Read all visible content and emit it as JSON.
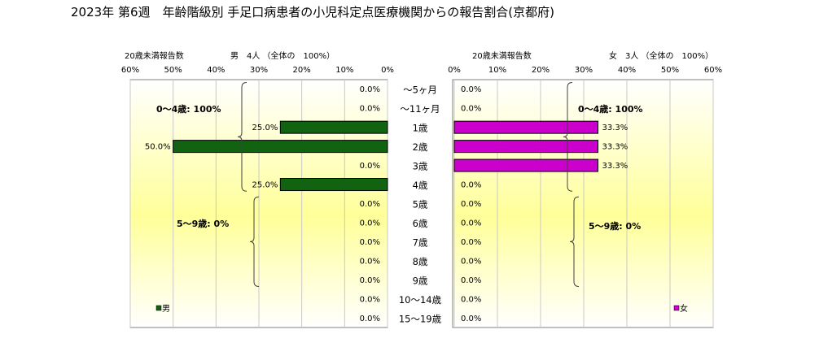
{
  "title": "2023年 第6週　年齢階級別 手足口病患者の小児科定点医療機関からの報告割合(京都府)",
  "chart_data": [
    {
      "type": "bar",
      "orientation": "horizontal",
      "direction": "right-to-left",
      "subtitle_left": "20歳未満報告数",
      "subtitle_right": "男　4人 （全体の　100%）",
      "series": [
        {
          "name": "男",
          "color": "#116311",
          "values": [
            0.0,
            0.0,
            25.0,
            50.0,
            0.0,
            25.0,
            0.0,
            0.0,
            0.0,
            0.0,
            0.0,
            0.0,
            0.0
          ]
        }
      ],
      "value_labels": [
        "0.0%",
        "0.0%",
        "25.0%",
        "50.0%",
        "0.0%",
        "25.0%",
        "0.0%",
        "0.0%",
        "0.0%",
        "0.0%",
        "0.0%",
        "0.0%",
        "0.0%"
      ],
      "ticks": [
        "60%",
        "50%",
        "40%",
        "30%",
        "20%",
        "10%",
        "0%"
      ],
      "xlim": [
        0,
        60
      ],
      "grid": true,
      "legend": "bottom-left",
      "legend_label": "男",
      "brackets": [
        {
          "label": "0～4歳: 100%",
          "from": 0,
          "to": 5
        },
        {
          "label": "5～9歳: 0%",
          "from": 6,
          "to": 10
        }
      ]
    },
    {
      "type": "bar",
      "orientation": "horizontal",
      "direction": "left-to-right",
      "subtitle_left": "20歳未満報告数",
      "subtitle_right": "女　3人 （全体の　100%）",
      "series": [
        {
          "name": "女",
          "color": "#cc00cc",
          "values": [
            0.0,
            0.0,
            33.3,
            33.3,
            33.3,
            0.0,
            0.0,
            0.0,
            0.0,
            0.0,
            0.0,
            0.0,
            0.0
          ]
        }
      ],
      "value_labels": [
        "0.0%",
        "0.0%",
        "33.3%",
        "33.3%",
        "33.3%",
        "0.0%",
        "0.0%",
        "0.0%",
        "0.0%",
        "0.0%",
        "0.0%",
        "0.0%",
        "0.0%"
      ],
      "ticks": [
        "0%",
        "10%",
        "20%",
        "30%",
        "40%",
        "50%",
        "60%"
      ],
      "xlim": [
        0,
        60
      ],
      "grid": true,
      "legend": "bottom-right",
      "legend_label": "女",
      "brackets": [
        {
          "label": "0～4歳: 100%",
          "from": 0,
          "to": 5
        },
        {
          "label": "5～9歳: 0%",
          "from": 6,
          "to": 10
        }
      ]
    }
  ],
  "categories": [
    "～5ヶ月",
    "～11ヶ月",
    "1歳",
    "2歳",
    "3歳",
    "4歳",
    "5歳",
    "6歳",
    "7歳",
    "8歳",
    "9歳",
    "10～14歳",
    "15～19歳"
  ]
}
